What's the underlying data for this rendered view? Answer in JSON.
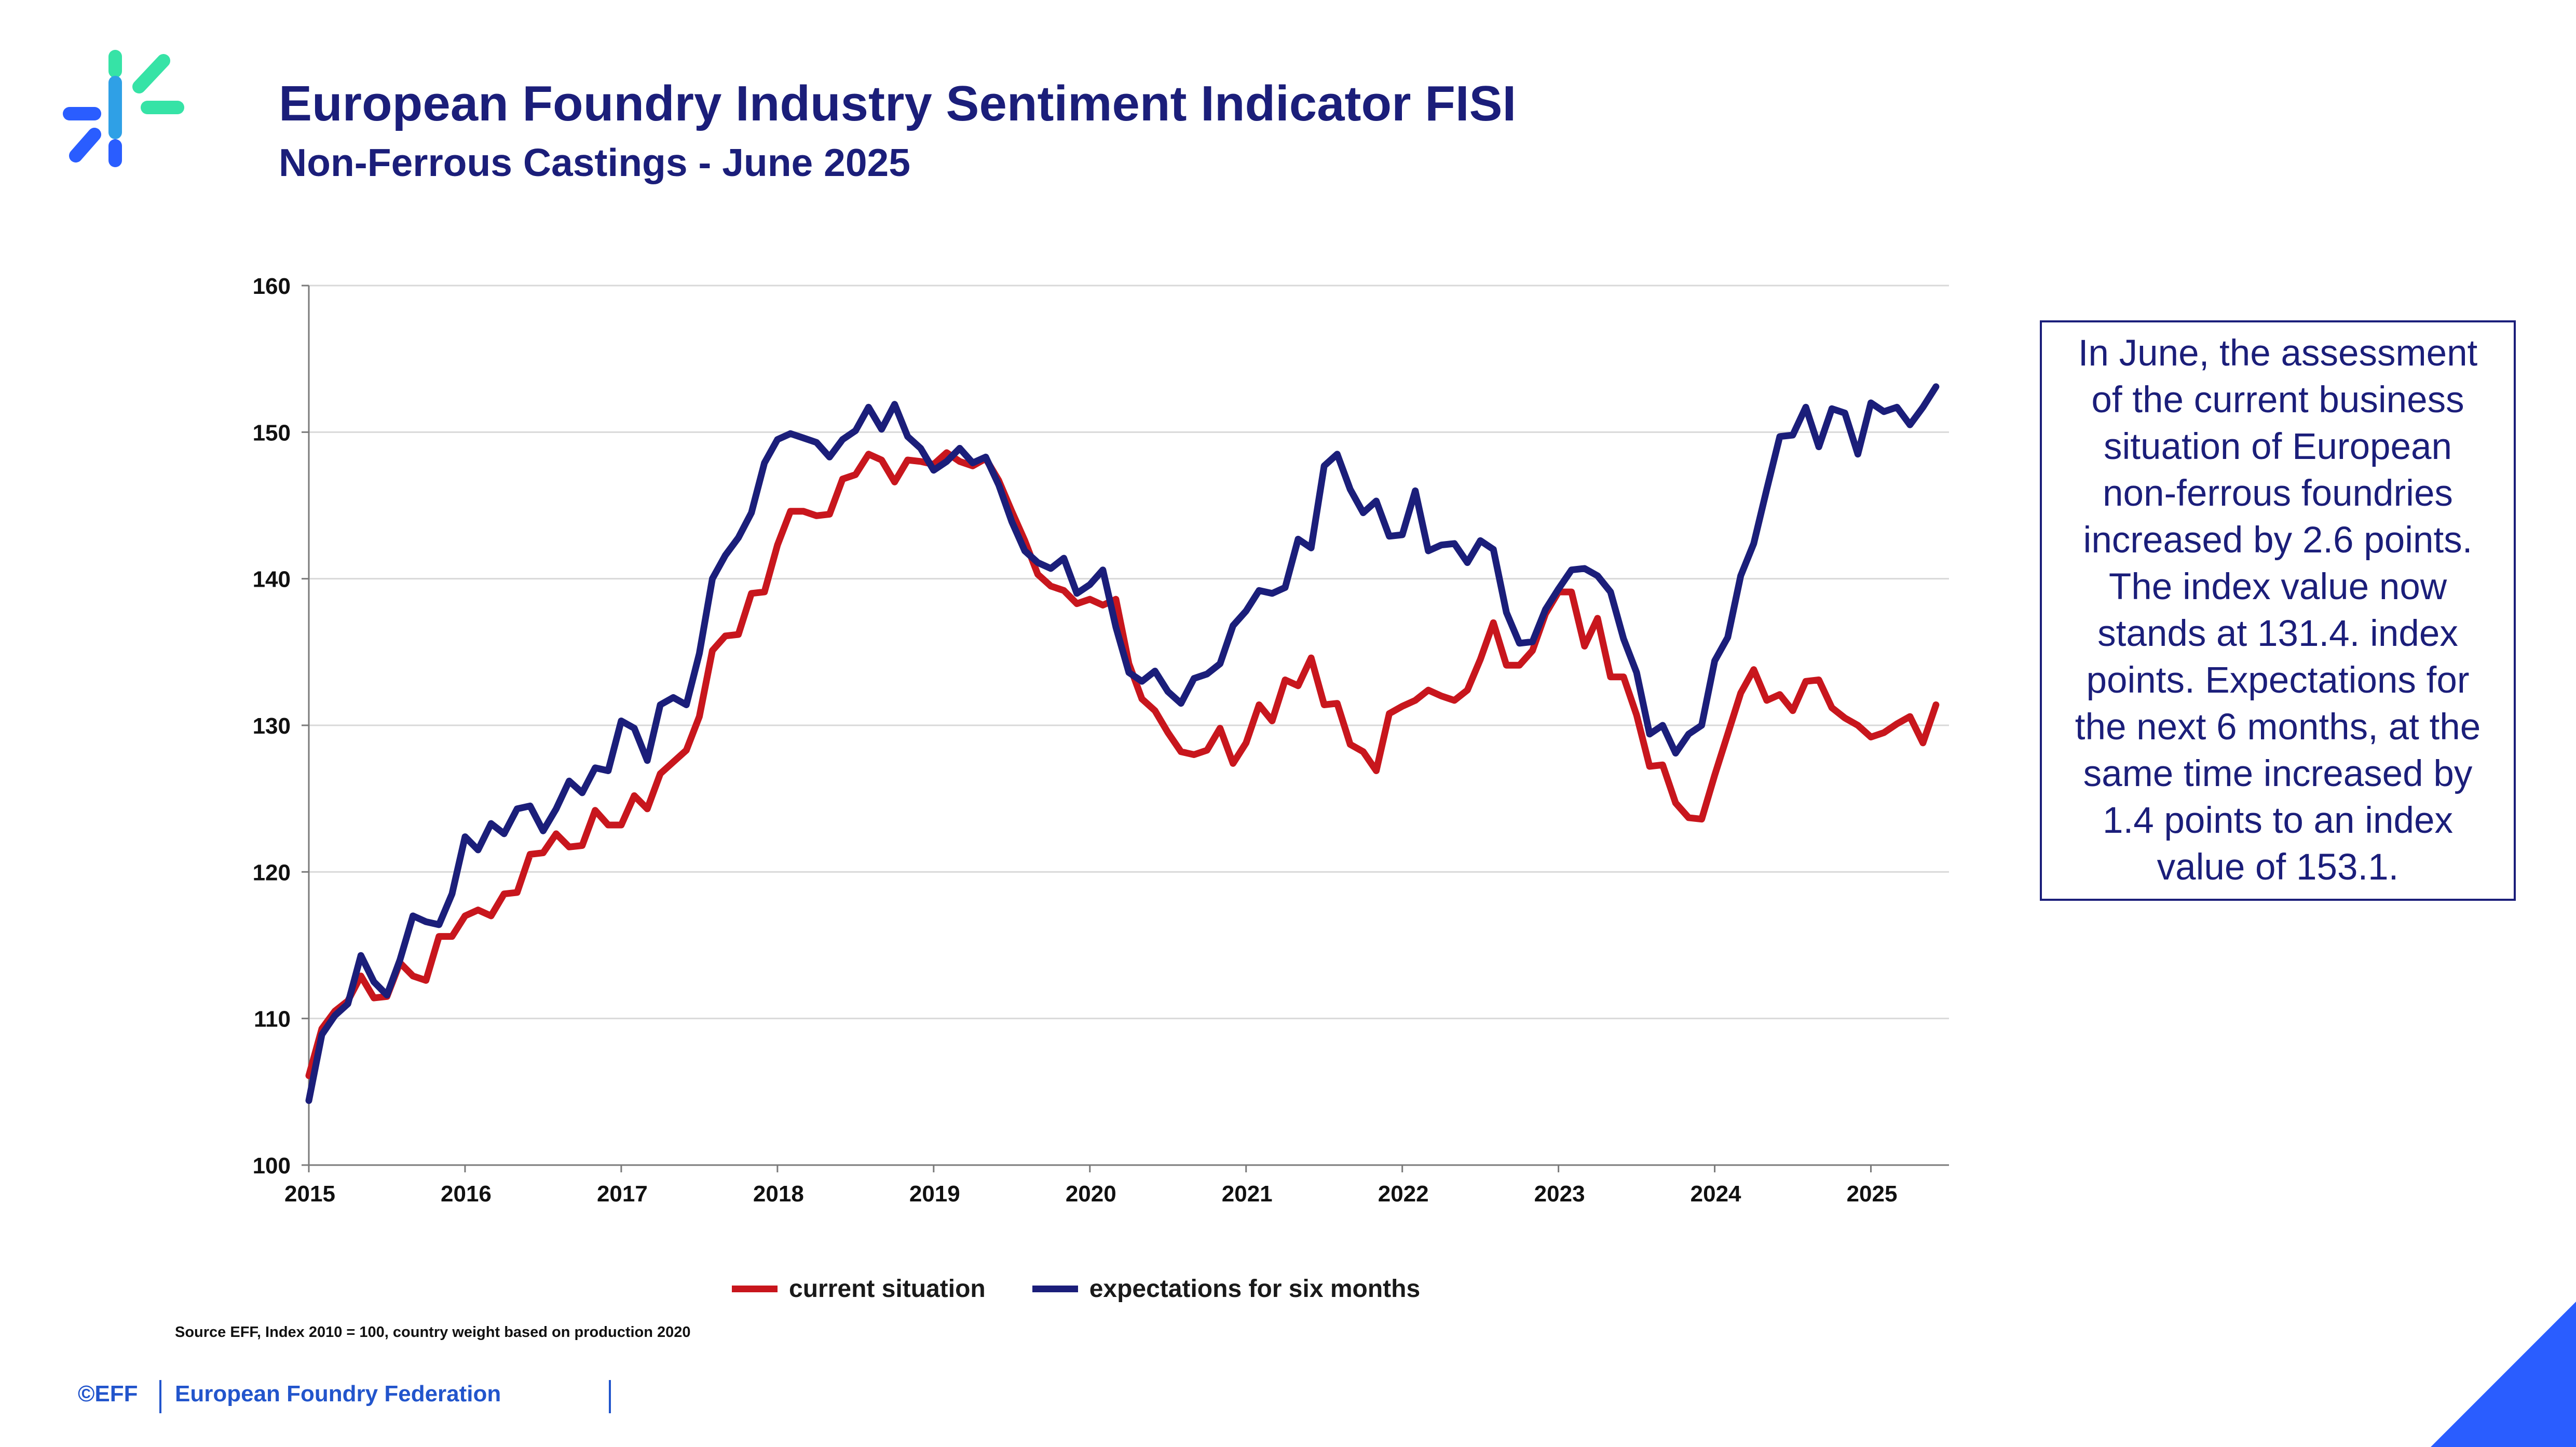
{
  "header": {
    "title": "European Foundry Industry Sentiment Indicator FISI",
    "subtitle": "Non-Ferrous Castings - June 2025"
  },
  "info_box": {
    "text": "In June, the assessment of the current business situation of European non-ferrous foundries increased by 2.6 points. The index value now stands at 131.4. index points. Expectations for the next 6 months, at the same time increased by 1.4 points to an index value of 153.1."
  },
  "footer": {
    "source": "Source EFF, Index 2010 = 100, country weight based on production 2020",
    "copyright": "©EFF",
    "org": "European Foundry Federation"
  },
  "colors": {
    "title": "#1b1e7a",
    "current": "#c8161d",
    "expectations": "#1b1e7a",
    "accent": "#2255cc"
  },
  "chart_data": {
    "type": "line",
    "ylim": [
      100,
      160
    ],
    "yticks": [
      100,
      110,
      120,
      130,
      140,
      150,
      160
    ],
    "xticks": [
      "2015",
      "2016",
      "2017",
      "2018",
      "2019",
      "2020",
      "2021",
      "2022",
      "2023",
      "2024",
      "2025"
    ],
    "x_start": "2015-01",
    "grid": true,
    "legend": "bottom",
    "series": [
      {
        "name": "current situation",
        "color": "#c8161d",
        "values": [
          106.1,
          109.3,
          110.5,
          111.2,
          112.9,
          111.4,
          111.5,
          113.8,
          112.9,
          112.6,
          115.6,
          115.6,
          117.0,
          117.4,
          117.0,
          118.5,
          118.6,
          121.2,
          121.3,
          122.6,
          121.7,
          121.8,
          124.2,
          123.2,
          123.2,
          125.2,
          124.3,
          126.7,
          127.5,
          128.3,
          130.6,
          135.1,
          136.1,
          136.2,
          139.0,
          139.1,
          142.3,
          144.6,
          144.6,
          144.3,
          144.4,
          146.8,
          147.1,
          148.5,
          148.1,
          146.6,
          148.1,
          148.0,
          147.8,
          148.6,
          148.0,
          147.7,
          148.2,
          146.7,
          144.6,
          142.6,
          140.3,
          139.5,
          139.2,
          138.3,
          138.6,
          138.2,
          138.6,
          134.2,
          131.8,
          131.0,
          129.5,
          128.2,
          128.0,
          128.3,
          129.8,
          127.4,
          128.8,
          131.4,
          130.3,
          133.1,
          132.7,
          134.6,
          131.4,
          131.5,
          128.7,
          128.2,
          126.9,
          130.8,
          131.3,
          131.7,
          132.4,
          132.0,
          131.7,
          132.4,
          134.5,
          137.0,
          134.1,
          134.1,
          135.1,
          137.6,
          139.1,
          139.1,
          135.4,
          137.3,
          133.3,
          133.3,
          130.7,
          127.2,
          127.3,
          124.7,
          123.7,
          123.6,
          126.6,
          129.4,
          132.2,
          133.8,
          131.7,
          132.1,
          131.0,
          133.0,
          133.1,
          131.2,
          130.5,
          130.0,
          129.2,
          129.5,
          130.1,
          130.6,
          128.8,
          131.4
        ]
      },
      {
        "name": "expectations for six months",
        "color": "#1b1e7a",
        "values": [
          104.4,
          108.9,
          110.2,
          111.0,
          114.3,
          112.5,
          111.6,
          114.0,
          117.0,
          116.6,
          116.4,
          118.5,
          122.4,
          121.5,
          123.3,
          122.6,
          124.3,
          124.5,
          122.8,
          124.3,
          126.2,
          125.4,
          127.1,
          126.9,
          130.3,
          129.8,
          127.6,
          131.4,
          131.9,
          131.4,
          134.9,
          140.0,
          141.6,
          142.8,
          144.5,
          147.9,
          149.5,
          149.9,
          149.6,
          149.3,
          148.3,
          149.5,
          150.1,
          151.7,
          150.2,
          151.9,
          149.7,
          148.9,
          147.4,
          148.0,
          148.9,
          147.9,
          148.3,
          146.4,
          143.9,
          141.9,
          141.1,
          140.7,
          141.4,
          139.0,
          139.6,
          140.6,
          136.7,
          133.6,
          133.0,
          133.7,
          132.3,
          131.5,
          133.2,
          133.5,
          134.2,
          136.8,
          137.8,
          139.2,
          139.0,
          139.4,
          142.7,
          142.1,
          147.7,
          148.5,
          146.1,
          144.5,
          145.3,
          142.9,
          143.0,
          146.0,
          141.9,
          142.3,
          142.4,
          141.1,
          142.6,
          142.0,
          137.7,
          135.6,
          135.7,
          137.9,
          139.3,
          140.6,
          140.7,
          140.2,
          139.1,
          135.9,
          133.6,
          129.4,
          130.0,
          128.1,
          129.4,
          130.0,
          134.4,
          136.0,
          140.2,
          142.4,
          146.1,
          149.7,
          149.8,
          151.7,
          149.0,
          151.6,
          151.3,
          148.5,
          152.0,
          151.4,
          151.7,
          150.5,
          151.7,
          153.1
        ]
      }
    ]
  }
}
